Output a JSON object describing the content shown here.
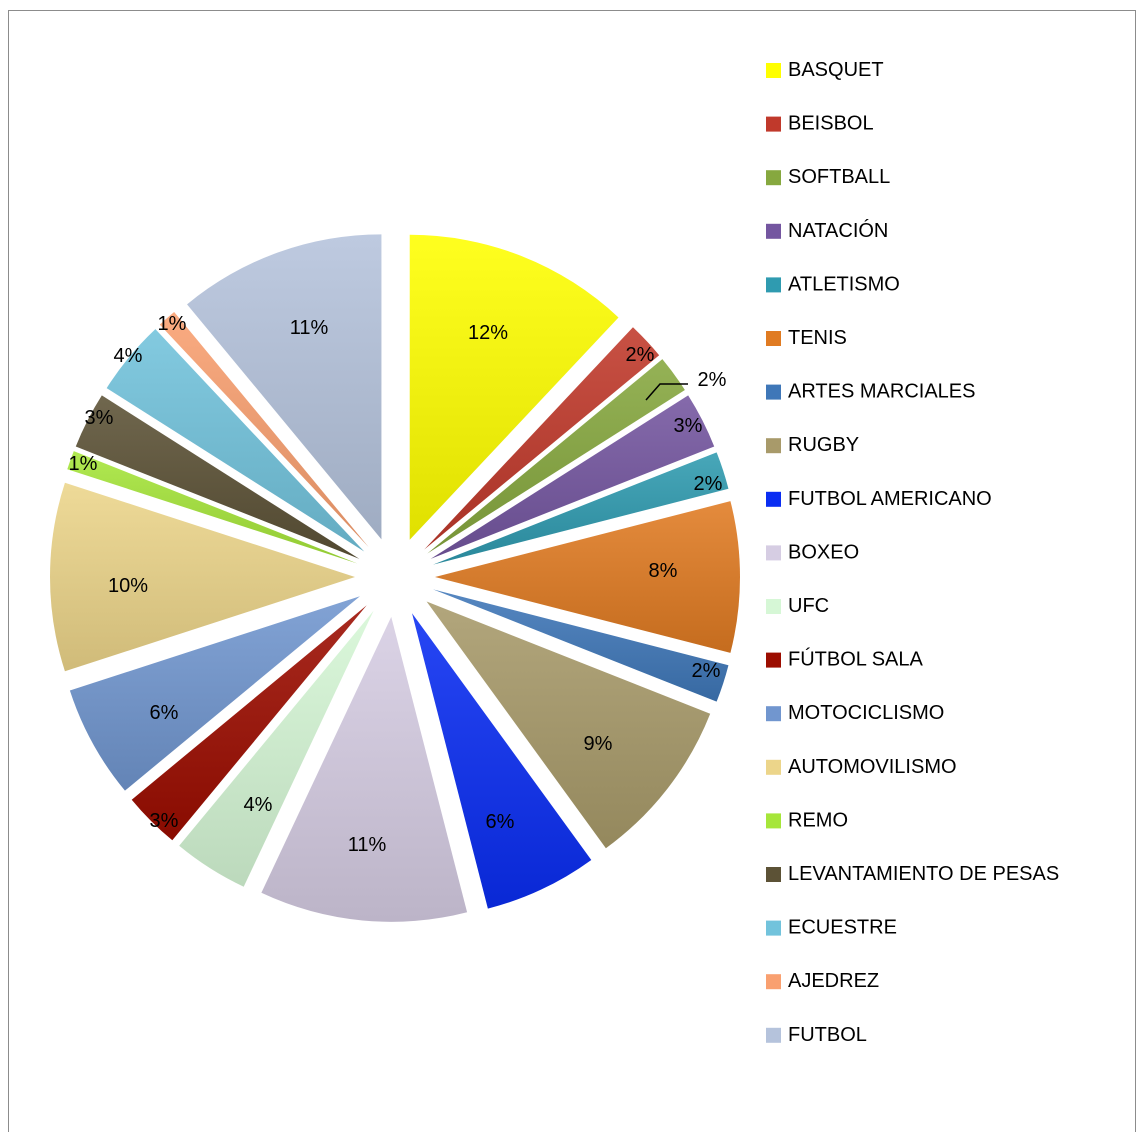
{
  "chart_data": {
    "type": "pie",
    "exploded": true,
    "legend_position": "right",
    "categories": [
      "BASQUET",
      "BEISBOL",
      "SOFTBALL",
      "NATACIÓN",
      "ATLETISMO",
      "TENIS",
      "ARTES MARCIALES",
      "RUGBY",
      "FUTBOL AMERICANO",
      "BOXEO",
      "UFC",
      "FÚTBOL SALA",
      "MOTOCICLISMO",
      "AUTOMOVILISMO",
      "REMO",
      "LEVANTAMIENTO DE PESAS",
      "ECUESTRE",
      "AJEDREZ",
      "FUTBOL"
    ],
    "values": [
      12,
      2,
      2,
      3,
      2,
      8,
      2,
      9,
      6,
      11,
      4,
      3,
      6,
      10,
      1,
      3,
      4,
      1,
      11
    ],
    "labels": [
      "12%",
      "2%",
      "2%",
      "3%",
      "2%",
      "8%",
      "2%",
      "9%",
      "6%",
      "11%",
      "4%",
      "3%",
      "6%",
      "10%",
      "1%",
      "3%",
      "4%",
      "1%",
      "11%"
    ],
    "colors": [
      "#ffff00",
      "#c0392b",
      "#86a83f",
      "#7456a0",
      "#2f9bb0",
      "#e07b22",
      "#3f77b8",
      "#a89a6a",
      "#0a2df2",
      "#d6cde3",
      "#d6f7d6",
      "#9c0d00",
      "#7196cf",
      "#ecd58a",
      "#a6e63a",
      "#5c5236",
      "#72c3dc",
      "#f9a070",
      "#b5c3dc"
    ]
  }
}
